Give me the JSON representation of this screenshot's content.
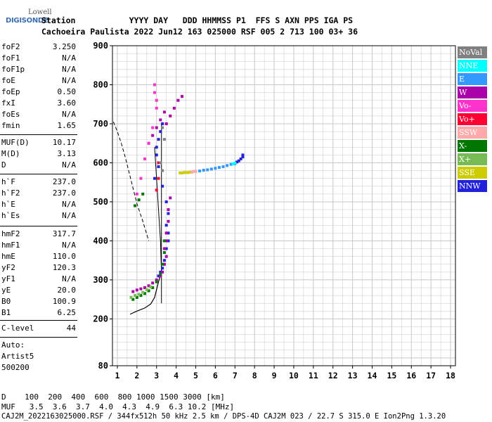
{
  "logo": {
    "line1": "Lowell",
    "line2": "DIGISONDE"
  },
  "header": {
    "row1": "Station           YYYY DAY   DDD HHMMSS P1  FFS S AXN PPS IGA PS",
    "row2": "Cachoeira Paulista 2022 Jun12 163 025000 RSF 005 2 713 100 03+ 36"
  },
  "params": [
    {
      "label": "foF2",
      "value": "3.250"
    },
    {
      "label": "foF1",
      "value": "N/A"
    },
    {
      "label": "foF1p",
      "value": "N/A"
    },
    {
      "label": "foE",
      "value": "N/A"
    },
    {
      "label": "foEp",
      "value": "0.50"
    },
    {
      "label": "fxI",
      "value": "3.60"
    },
    {
      "label": "foEs",
      "value": "N/A"
    },
    {
      "label": "fmin",
      "value": "1.65"
    },
    {
      "label": "MUF(D)",
      "value": "10.17"
    },
    {
      "label": "M(D)",
      "value": "3.13"
    },
    {
      "label": "D",
      "value": "N/A"
    },
    {
      "label": "h`F",
      "value": "237.0"
    },
    {
      "label": "h`F2",
      "value": "237.0"
    },
    {
      "label": "h`E",
      "value": "N/A"
    },
    {
      "label": "h`Es",
      "value": "N/A"
    },
    {
      "label": "hmF2",
      "value": "317.7"
    },
    {
      "label": "hmF1",
      "value": "N/A"
    },
    {
      "label": "hmE",
      "value": "110.0"
    },
    {
      "label": "yF2",
      "value": "120.3"
    },
    {
      "label": "yF1",
      "value": "N/A"
    },
    {
      "label": "yE",
      "value": "20.0"
    },
    {
      "label": "B0",
      "value": "100.9"
    },
    {
      "label": "B1",
      "value": "6.25"
    },
    {
      "label": "C-level",
      "value": "44"
    }
  ],
  "autoscale": {
    "line1": "Auto:",
    "line2": "Artist5",
    "line3": "500200"
  },
  "legend": [
    {
      "label": "NoVal",
      "color": "#808080"
    },
    {
      "label": "NNE",
      "color": "#00ffff"
    },
    {
      "label": "E",
      "color": "#3399ff"
    },
    {
      "label": "W",
      "color": "#aa00aa"
    },
    {
      "label": "Vo-",
      "color": "#ff33cc"
    },
    {
      "label": "Vo+",
      "color": "#ff0033"
    },
    {
      "label": "SSW",
      "color": "#ffaaaa"
    },
    {
      "label": "X-",
      "color": "#007700"
    },
    {
      "label": "X+",
      "color": "#77bb55"
    },
    {
      "label": "SSE",
      "color": "#cccc00"
    },
    {
      "label": "NNW",
      "color": "#2222dd"
    }
  ],
  "footer": {
    "d_row": "D    100  200  400  600  800 1000 1500 3000 [km]",
    "muf_row": "MUF   3.5  3.6  3.7  4.0  4.3  4.9  6.3 10.2 [MHz]",
    "file_line": "CAJ2M_2022163025000.RSF / 344fx512h 50 kHz 2.5 km / DPS-4D CAJ2M 023 / 22.7 S 315.0 E Ion2Png 1.3.20"
  },
  "chart_data": {
    "type": "scatter",
    "xlim": [
      0.75,
      18.25
    ],
    "ylim": [
      80,
      900
    ],
    "xticks": [
      "1",
      "2",
      "3",
      "4",
      "5",
      "6",
      "7",
      "8",
      "9",
      "10",
      "11",
      "12",
      "13",
      "14",
      "15",
      "16",
      "17",
      "18"
    ],
    "yticks": [
      "80",
      "200",
      "300",
      "400",
      "500",
      "600",
      "700",
      "800",
      "900"
    ],
    "grid": true,
    "series": [
      {
        "name": "E",
        "color": "#3399ff",
        "x": [
          5.0,
          5.2,
          5.4,
          5.6,
          5.8,
          6.0,
          6.2,
          6.4,
          6.6,
          6.8
        ],
        "y": [
          578,
          579,
          581,
          582,
          584,
          586,
          588,
          590,
          593,
          596
        ]
      },
      {
        "name": "NNW",
        "color": "#2222dd",
        "x": [
          7.0,
          7.1,
          7.2,
          7.3,
          7.4,
          7.4,
          3.0,
          3.1,
          3.2,
          3.3,
          3.0,
          3.1,
          2.9,
          3.3,
          3.5,
          3.6,
          3.5,
          3.6,
          3.6,
          3.5,
          3.4,
          3.3,
          3.2,
          3.1
        ],
        "y": [
          598,
          602,
          605,
          610,
          615,
          620,
          640,
          660,
          680,
          700,
          620,
          590,
          560,
          540,
          500,
          470,
          440,
          400,
          420,
          380,
          350,
          330,
          320,
          310
        ]
      },
      {
        "name": "W",
        "color": "#aa00aa",
        "x": [
          3.7,
          3.6,
          3.6,
          3.5,
          3.5,
          3.4,
          3.5,
          3.4,
          3.3,
          3.2,
          3.0,
          2.8,
          2.6,
          2.4,
          2.2,
          2.0,
          1.8,
          3.5,
          3.7,
          3.9,
          4.1,
          4.3,
          3.4,
          3.2,
          3.0,
          2.8,
          2.6
        ],
        "y": [
          510,
          480,
          450,
          420,
          400,
          380,
          360,
          340,
          320,
          310,
          300,
          292,
          285,
          280,
          277,
          274,
          270,
          700,
          720,
          740,
          760,
          770,
          730,
          710,
          690,
          670,
          650
        ]
      },
      {
        "name": "Vo-",
        "color": "#ff33cc",
        "x": [
          2.9,
          2.9,
          3.0,
          3.0,
          2.8,
          2.6,
          2.4,
          2.2,
          2.0
        ],
        "y": [
          800,
          780,
          760,
          740,
          690,
          650,
          610,
          560,
          520
        ]
      },
      {
        "name": "X-",
        "color": "#007700",
        "x": [
          1.8,
          2.0,
          2.2,
          2.4,
          2.6,
          2.8,
          3.0,
          3.2,
          3.3,
          3.4,
          3.4,
          1.9,
          2.1,
          2.3
        ],
        "y": [
          250,
          255,
          260,
          265,
          272,
          280,
          295,
          315,
          340,
          370,
          400,
          490,
          505,
          520
        ]
      },
      {
        "name": "X+",
        "color": "#77bb55",
        "x": [
          1.7,
          1.9,
          2.1,
          2.3,
          2.5,
          2.7
        ],
        "y": [
          255,
          260,
          263,
          268,
          275,
          282
        ]
      },
      {
        "name": "SSE",
        "color": "#cccc00",
        "x": [
          4.2,
          4.3,
          4.4,
          4.5,
          4.6,
          4.7,
          4.8
        ],
        "y": [
          574,
          574,
          575,
          575,
          575,
          576,
          576
        ]
      },
      {
        "name": "SSW",
        "color": "#ffaaaa",
        "x": [
          4.8,
          4.9,
          5.0
        ],
        "y": [
          577,
          578,
          578
        ]
      },
      {
        "name": "Vo+",
        "color": "#ff0033",
        "x": [
          3.1,
          3.1,
          3.0
        ],
        "y": [
          600,
          560,
          530
        ]
      },
      {
        "name": "NNE",
        "color": "#00ffff",
        "x": [
          6.9,
          7.0
        ],
        "y": [
          597,
          599
        ]
      },
      {
        "name": "NoVal",
        "color": "#808080",
        "x": [
          3.3,
          3.4,
          3.2,
          3.3
        ],
        "y": [
          690,
          660,
          600,
          580
        ]
      }
    ],
    "profile": {
      "x": [
        1.65,
        2.0,
        2.4,
        2.7,
        2.9,
        3.0,
        3.1,
        3.2,
        3.25
      ],
      "y": [
        212,
        220,
        228,
        238,
        255,
        275,
        295,
        312,
        317.7
      ]
    },
    "profile_upper": {
      "x": [
        3.25,
        3.2,
        3.1,
        3.0,
        2.9
      ],
      "y": [
        317.7,
        400,
        480,
        560,
        640
      ]
    },
    "dashed_curve": {
      "x": [
        0.8,
        1.0,
        1.2,
        1.4,
        1.6,
        1.8,
        2.0,
        2.3,
        2.6
      ],
      "y": [
        705,
        680,
        650,
        615,
        575,
        535,
        495,
        450,
        400
      ]
    },
    "scaling_lines": {
      "x": [
        3.25,
        3.25
      ],
      "y": [
        240,
        700
      ]
    }
  }
}
